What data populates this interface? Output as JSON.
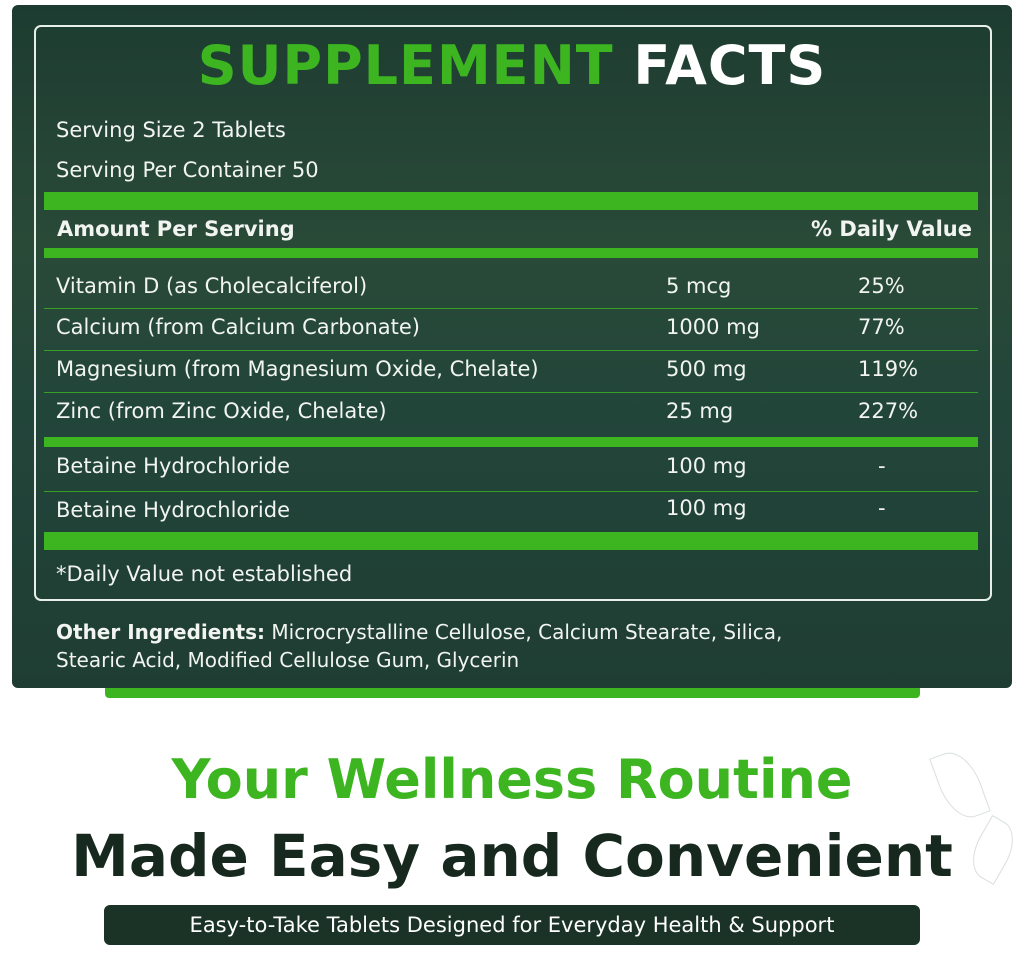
{
  "title": {
    "part1": "SUPPLEMENT",
    "part2": "FACTS"
  },
  "serving_size": "Serving Size 2 Tablets",
  "servings_per_container": "Serving Per Container 50",
  "header": {
    "amount": "Amount Per Serving",
    "dv": "% Daily Value"
  },
  "rows": [
    {
      "name": "Vitamin D (as Cholecalciferol)",
      "amount": "5 mcg",
      "dv": "25%"
    },
    {
      "name": "Calcium (from Calcium Carbonate)",
      "amount": "1000 mg",
      "dv": "77%"
    },
    {
      "name": "Magnesium (from Magnesium Oxide, Chelate)",
      "amount": "500 mg",
      "dv": "119%"
    },
    {
      "name": "Zinc (from Zinc Oxide, Chelate)",
      "amount": "25 mg",
      "dv": "227%"
    }
  ],
  "rows2": [
    {
      "name": "Betaine Hydrochloride",
      "amount": "100 mg",
      "dv": "-"
    },
    {
      "name": "Betaine Hydrochloride",
      "amount": "100 mg",
      "dv": "-"
    }
  ],
  "footnote": "*Daily Value not established",
  "other": {
    "label": "Other Ingredients:",
    "line1": " Microcrystalline Cellulose, Calcium Stearate, Silica,",
    "line2": "Stearic Acid, Modified Cellulose Gum, Glycerin"
  },
  "headline1": "Your Wellness Routine",
  "headline2": "Made Easy and Convenient",
  "tagline": "Easy-to-Take Tablets Designed for Everyday Health & Support",
  "colors": {
    "accent": "#3cb521",
    "panel": "#1e3d31",
    "dark_text": "#17291f"
  }
}
